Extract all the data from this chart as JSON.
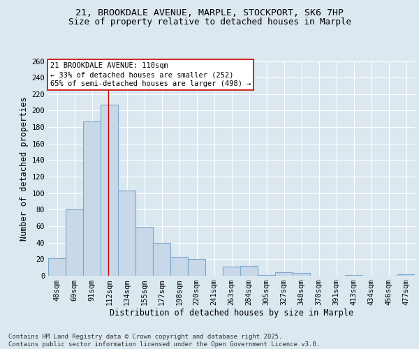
{
  "title_line1": "21, BROOKDALE AVENUE, MARPLE, STOCKPORT, SK6 7HP",
  "title_line2": "Size of property relative to detached houses in Marple",
  "xlabel": "Distribution of detached houses by size in Marple",
  "ylabel": "Number of detached properties",
  "bar_color": "#c8d8e8",
  "bar_edge_color": "#7aa8cc",
  "bar_edge_width": 0.8,
  "categories": [
    "48sqm",
    "69sqm",
    "91sqm",
    "112sqm",
    "134sqm",
    "155sqm",
    "177sqm",
    "198sqm",
    "220sqm",
    "241sqm",
    "263sqm",
    "284sqm",
    "305sqm",
    "327sqm",
    "348sqm",
    "370sqm",
    "391sqm",
    "413sqm",
    "434sqm",
    "456sqm",
    "477sqm"
  ],
  "values": [
    21,
    80,
    187,
    207,
    103,
    59,
    40,
    23,
    20,
    0,
    11,
    12,
    1,
    4,
    3,
    0,
    0,
    1,
    0,
    0,
    2
  ],
  "ylim": [
    0,
    260
  ],
  "yticks": [
    0,
    20,
    40,
    60,
    80,
    100,
    120,
    140,
    160,
    180,
    200,
    220,
    240,
    260
  ],
  "vline_x": 2.93,
  "vline_color": "#cc0000",
  "annotation_text": "21 BROOKDALE AVENUE: 110sqm\n← 33% of detached houses are smaller (252)\n65% of semi-detached houses are larger (498) →",
  "background_color": "#dce8f0",
  "plot_bg_color": "#dce8f0",
  "grid_color": "#ffffff",
  "footer_text": "Contains HM Land Registry data © Crown copyright and database right 2025.\nContains public sector information licensed under the Open Government Licence v3.0.",
  "title_fontsize": 9.5,
  "subtitle_fontsize": 9,
  "axis_label_fontsize": 8.5,
  "tick_fontsize": 7.5,
  "annotation_fontsize": 7.5,
  "footer_fontsize": 6.5
}
